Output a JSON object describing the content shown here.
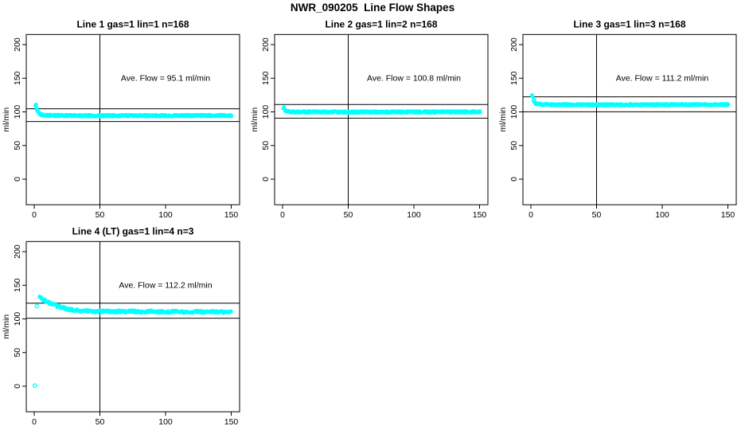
{
  "title": "NWR_090205  Line Flow Shapes",
  "colors": {
    "points": "#00FFFF",
    "axis": "#000000",
    "background": "#FFFFFF"
  },
  "axes": {
    "ylabel": "ml/min",
    "x_ticks": [
      0,
      50,
      100,
      150
    ],
    "y_ticks": [
      0,
      50,
      100,
      150,
      200
    ],
    "vline_x": 50,
    "grid": "off",
    "legend": "none"
  },
  "chart_data": [
    {
      "type": "scatter",
      "title": "Line 1 gas=1 lin=1 n=168",
      "annotation": "Ave. Flow =  95.1  ml/min",
      "ave_flow_ml_min": 95.1,
      "n": 168,
      "grid_pos": {
        "row": 0,
        "col": 0
      },
      "hlines": [
        104.6,
        85.6
      ],
      "vline_x": 50,
      "marker": "open-circle",
      "mean_curve": [
        [
          1,
          110
        ],
        [
          2,
          104
        ],
        [
          3,
          99.5
        ],
        [
          4,
          97
        ],
        [
          6,
          95.5
        ],
        [
          10,
          94.8
        ],
        [
          20,
          94.5
        ],
        [
          40,
          94.3
        ],
        [
          60,
          94.3
        ],
        [
          80,
          94.4
        ],
        [
          100,
          94.3
        ],
        [
          120,
          94.4
        ],
        [
          150,
          94.5
        ]
      ],
      "band_halfwidth": 1.2,
      "overlay_layers": 3,
      "extra_points": []
    },
    {
      "type": "scatter",
      "title": "Line 2 gas=1 lin=2 n=168",
      "annotation": "Ave. Flow =  100.8  ml/min",
      "ave_flow_ml_min": 100.8,
      "n": 168,
      "grid_pos": {
        "row": 0,
        "col": 1
      },
      "hlines": [
        110.9,
        90.7
      ],
      "vline_x": 50,
      "marker": "open-circle",
      "mean_curve": [
        [
          1,
          106
        ],
        [
          2,
          102
        ],
        [
          3,
          100.8
        ],
        [
          5,
          100.2
        ],
        [
          10,
          100
        ],
        [
          20,
          99.8
        ],
        [
          40,
          99.7
        ],
        [
          70,
          99.7
        ],
        [
          100,
          99.8
        ],
        [
          130,
          99.8
        ],
        [
          150,
          100
        ]
      ],
      "band_halfwidth": 1.2,
      "overlay_layers": 3,
      "extra_points": []
    },
    {
      "type": "scatter",
      "title": "Line 3 gas=1 lin=3 n=168",
      "annotation": "Ave. Flow =  111.2  ml/min",
      "ave_flow_ml_min": 111.2,
      "n": 168,
      "grid_pos": {
        "row": 0,
        "col": 2
      },
      "hlines": [
        122.3,
        100.1
      ],
      "vline_x": 50,
      "marker": "open-circle",
      "mean_curve": [
        [
          1,
          124
        ],
        [
          2,
          117
        ],
        [
          3,
          113.5
        ],
        [
          4,
          112.3
        ],
        [
          6,
          111.5
        ],
        [
          10,
          111
        ],
        [
          20,
          110.7
        ],
        [
          40,
          110.5
        ],
        [
          70,
          110.5
        ],
        [
          100,
          110.6
        ],
        [
          130,
          110.6
        ],
        [
          150,
          110.7
        ]
      ],
      "band_halfwidth": 1.1,
      "overlay_layers": 3,
      "extra_points": []
    },
    {
      "type": "scatter",
      "title": "Line 4 (LT) gas=1 lin=4 n=3",
      "annotation": "Ave. Flow =  112.2  ml/min",
      "ave_flow_ml_min": 112.2,
      "n": 3,
      "grid_pos": {
        "row": 1,
        "col": 0
      },
      "hlines": [
        123.4,
        101.0
      ],
      "vline_x": 50,
      "marker": "open-circle",
      "mean_curve": [
        [
          4,
          131.5
        ],
        [
          6,
          129.5
        ],
        [
          8,
          127.5
        ],
        [
          10,
          125.5
        ],
        [
          13,
          123
        ],
        [
          16,
          120.5
        ],
        [
          20,
          117.5
        ],
        [
          25,
          115
        ],
        [
          30,
          113
        ],
        [
          35,
          112
        ],
        [
          40,
          111.5
        ],
        [
          45,
          111
        ],
        [
          50,
          110.8
        ],
        [
          55,
          111.2
        ],
        [
          60,
          110.5
        ],
        [
          65,
          111.3
        ],
        [
          70,
          110.8
        ],
        [
          75,
          111.5
        ],
        [
          80,
          110.2
        ],
        [
          85,
          111
        ],
        [
          90,
          111.3
        ],
        [
          95,
          110.3
        ],
        [
          100,
          110.2
        ],
        [
          105,
          111
        ],
        [
          110,
          110.6
        ],
        [
          115,
          110
        ],
        [
          120,
          110.4
        ],
        [
          125,
          110.8
        ],
        [
          130,
          110.3
        ],
        [
          135,
          110.9
        ],
        [
          140,
          109.9
        ],
        [
          145,
          110.4
        ],
        [
          150,
          110.3
        ]
      ],
      "band_halfwidth": 1.6,
      "overlay_layers": 2,
      "extra_points": [
        [
          0.5,
          1
        ],
        [
          2,
          119
        ]
      ]
    }
  ]
}
